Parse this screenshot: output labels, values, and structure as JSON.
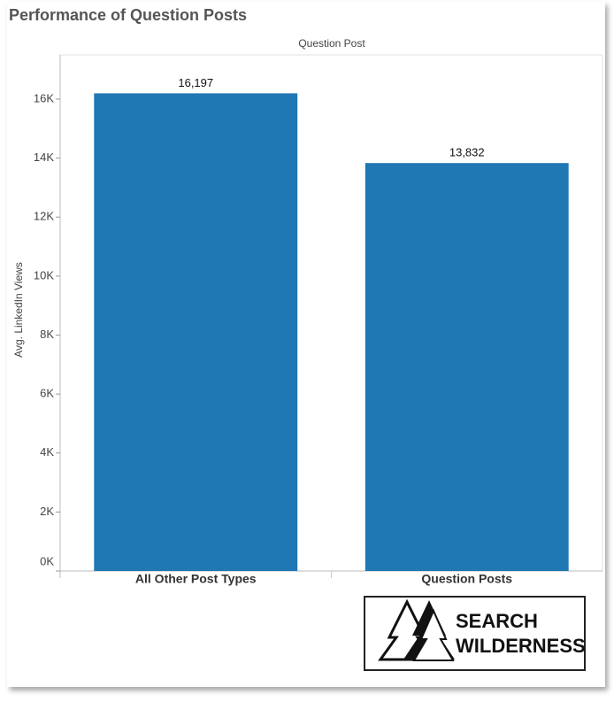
{
  "chart_data": {
    "type": "bar",
    "title": "Performance of Question Posts",
    "column_header": "Question Post",
    "y_label": "Avg. LinkedIn Views",
    "categories": [
      "All Other Post Types",
      "Question Posts"
    ],
    "values": [
      16197,
      13832
    ],
    "value_labels": [
      "16,197",
      "13,832"
    ],
    "color": "#1f77b4",
    "ylim": [
      0,
      17500
    ],
    "yticks": [
      {
        "value": 0,
        "label": "0K"
      },
      {
        "value": 2000,
        "label": "2K"
      },
      {
        "value": 4000,
        "label": "4K"
      },
      {
        "value": 6000,
        "label": "6K"
      },
      {
        "value": 8000,
        "label": "8K"
      },
      {
        "value": 10000,
        "label": "10K"
      },
      {
        "value": 12000,
        "label": "12K"
      },
      {
        "value": 14000,
        "label": "14K"
      },
      {
        "value": 16000,
        "label": "16K"
      }
    ],
    "grid": false,
    "logo_text": [
      "SEARCH",
      "WILDERNESS"
    ]
  }
}
